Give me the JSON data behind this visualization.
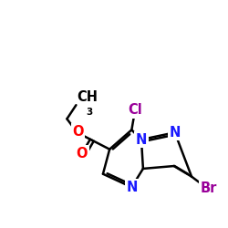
{
  "bg": "#ffffff",
  "bc": "#000000",
  "bw": 1.8,
  "dbo": 0.05,
  "ac_N": "#1a1aff",
  "ac_O": "#ff0000",
  "ac_Cl": "#990099",
  "ac_Br": "#990099",
  "fs": 10.5,
  "fss": 7.5,
  "figsize": [
    2.5,
    2.5
  ],
  "dpi": 100,
  "xlim": [
    0,
    10
  ],
  "ylim": [
    0,
    10
  ]
}
